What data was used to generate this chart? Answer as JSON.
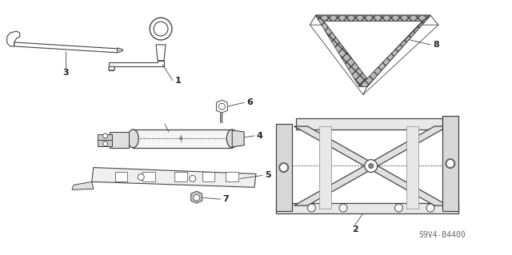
{
  "background_color": "#ffffff",
  "line_color": "#444444",
  "label_fontsize": 8,
  "watermark": "S9V4-B4400",
  "fig_width": 6.4,
  "fig_height": 3.19,
  "dpi": 100
}
